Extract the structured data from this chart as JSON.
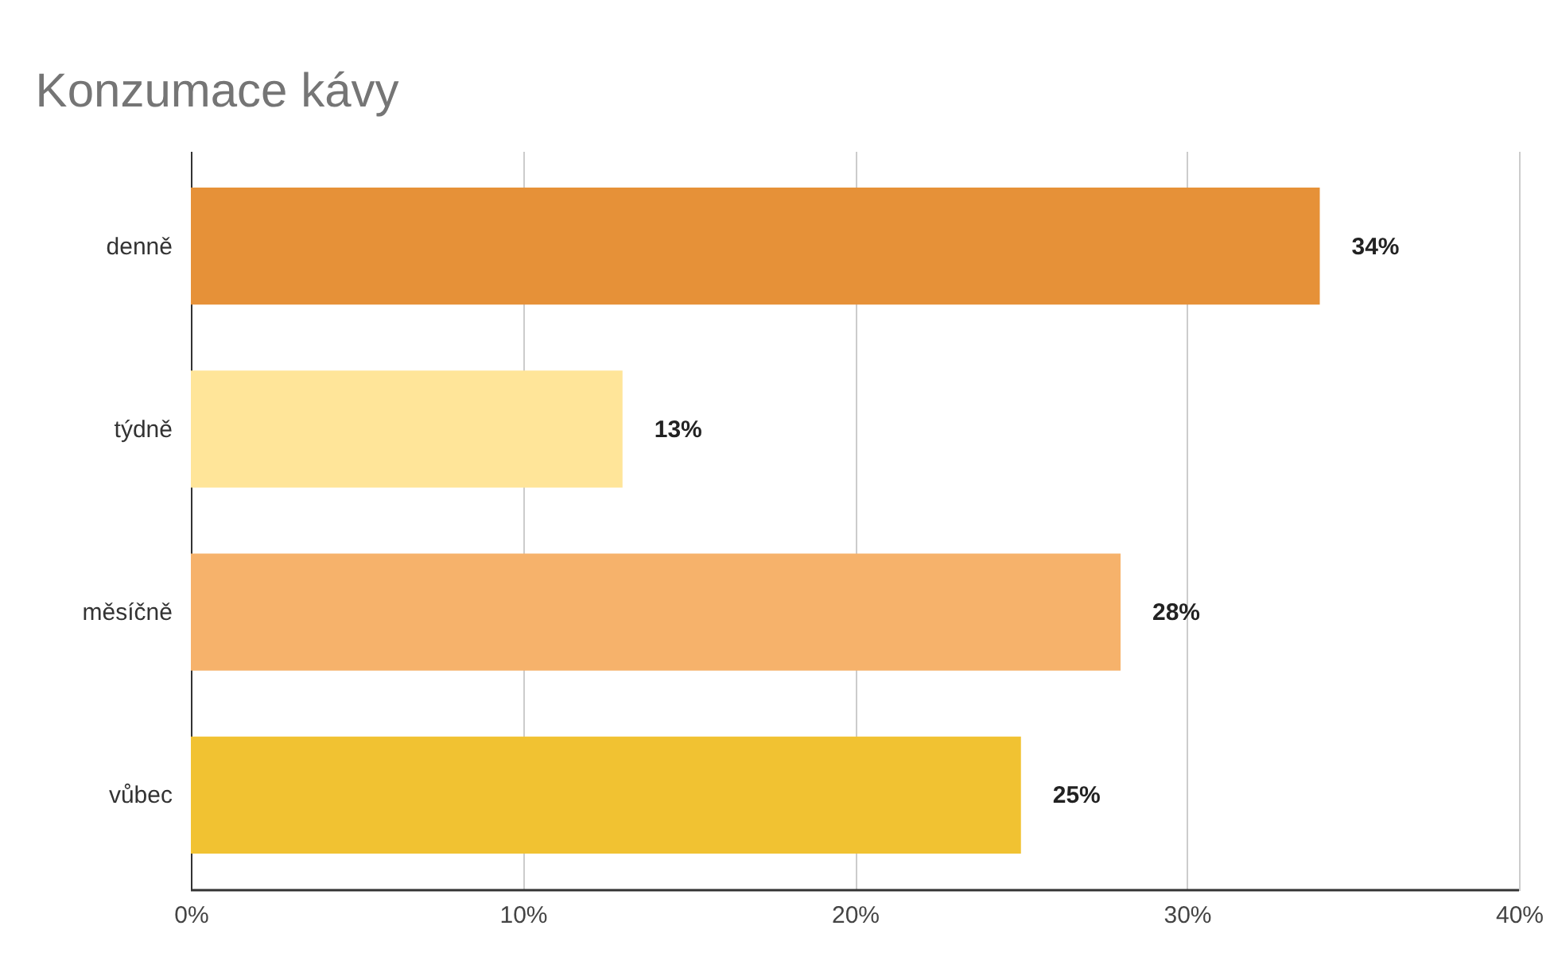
{
  "chart_data": {
    "type": "bar",
    "orientation": "horizontal",
    "title": "Konzumace kávy",
    "categories": [
      "denně",
      "týdně",
      "měsíčně",
      "vůbec"
    ],
    "values": [
      34,
      13,
      28,
      25
    ],
    "colors": [
      "#e69138",
      "#ffe599",
      "#f6b26b",
      "#f1c232"
    ],
    "value_labels": [
      "34%",
      "13%",
      "28%",
      "25%"
    ],
    "xlim": [
      0,
      40
    ],
    "xticks": [
      {
        "value": 0,
        "label": "0%"
      },
      {
        "value": 10,
        "label": "10%"
      },
      {
        "value": 20,
        "label": "20%"
      },
      {
        "value": 30,
        "label": "30%"
      },
      {
        "value": 40,
        "label": "40%"
      }
    ],
    "grid": "x",
    "legend": false
  }
}
